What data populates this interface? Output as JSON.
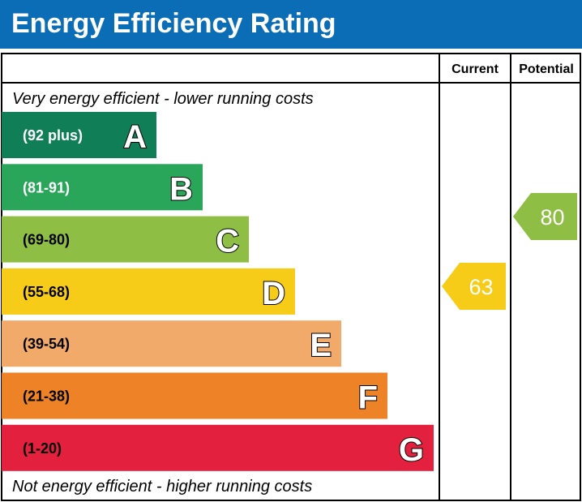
{
  "header": {
    "title": "Energy Efficiency Rating"
  },
  "chart_data": {
    "type": "bar",
    "columns": [
      "Current",
      "Potential"
    ],
    "top_note": "Very energy efficient - lower running costs",
    "bottom_note": "Not energy efficient - higher running costs",
    "bands": [
      {
        "letter": "A",
        "range": "(92 plus)",
        "color": "#107f58",
        "label_color": "#ffffff"
      },
      {
        "letter": "B",
        "range": "(81-91)",
        "color": "#2aa65b",
        "label_color": "#ffffff"
      },
      {
        "letter": "C",
        "range": "(69-80)",
        "color": "#8fbe44",
        "label_color": "#000000"
      },
      {
        "letter": "D",
        "range": "(55-68)",
        "color": "#f6cc18",
        "label_color": "#000000"
      },
      {
        "letter": "E",
        "range": "(39-54)",
        "color": "#f2aa6a",
        "label_color": "#000000"
      },
      {
        "letter": "F",
        "range": "(21-38)",
        "color": "#ee8227",
        "label_color": "#000000"
      },
      {
        "letter": "G",
        "range": "(1-20)",
        "color": "#e3203d",
        "label_color": "#000000"
      }
    ],
    "current": {
      "value": 63,
      "band": "D",
      "color": "#f6cc18"
    },
    "potential": {
      "value": 80,
      "band": "C",
      "color": "#8fbe44"
    }
  }
}
